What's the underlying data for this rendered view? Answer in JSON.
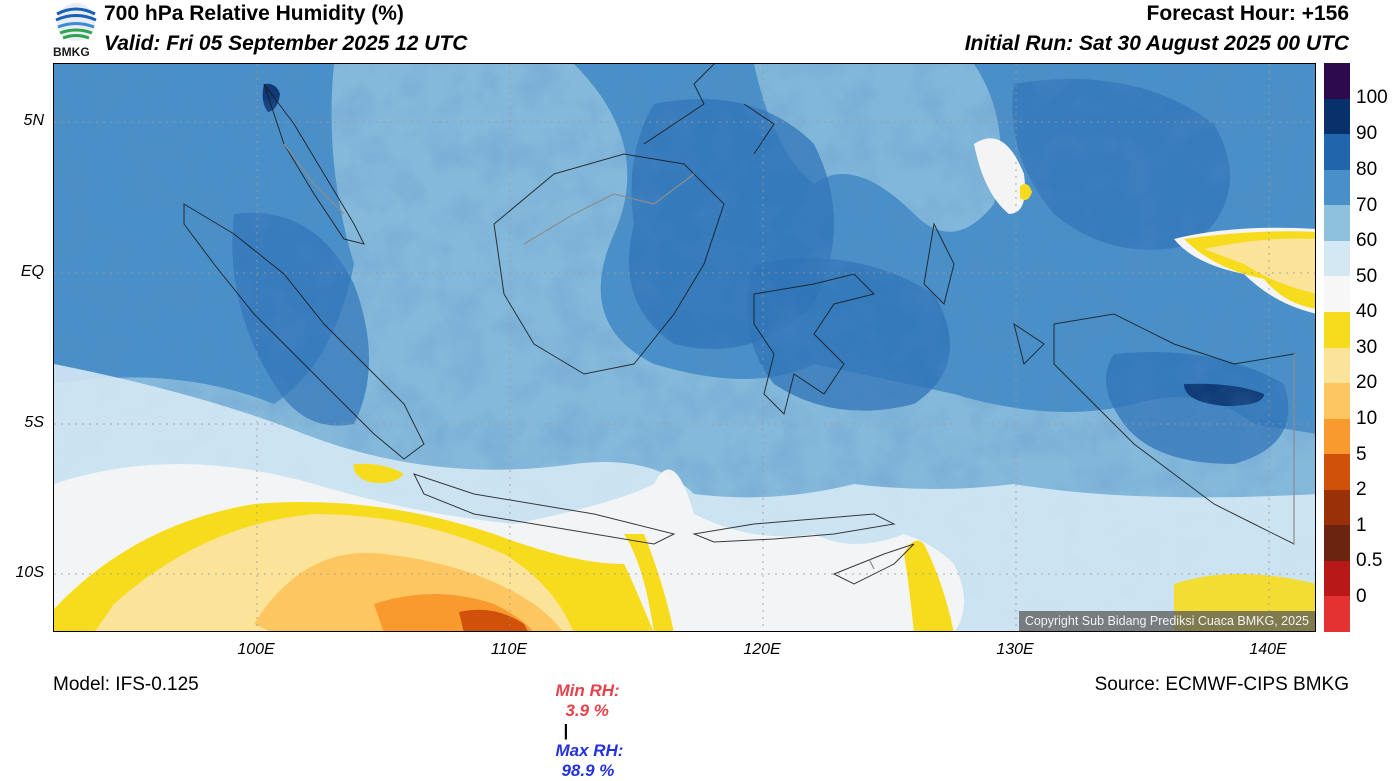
{
  "header": {
    "title": "700 hPa Relative Humidity (%)",
    "valid": "Valid: Fri 05 September 2025 12 UTC",
    "forecast_hour": "Forecast Hour: +156",
    "initial_run": "Initial Run: Sat 30 August 2025 00 UTC",
    "logo_text": "BMKG"
  },
  "map": {
    "lat_labels": [
      "5N",
      "EQ",
      "5S",
      "10S"
    ],
    "lon_labels": [
      "100E",
      "110E",
      "120E",
      "130E",
      "140E"
    ],
    "copyright": "Copyright Sub Bidang Prediksi Cuaca BMKG, 2025"
  },
  "colorbar": {
    "labels": [
      "100",
      "90",
      "80",
      "70",
      "60",
      "50",
      "40",
      "30",
      "20",
      "10",
      "5",
      "2",
      "1",
      "0.5",
      "0"
    ],
    "colors": [
      "#2d0a4e",
      "#08306b",
      "#2166ac",
      "#4a90c8",
      "#8ec1de",
      "#d4e8f4",
      "#f7f7f7",
      "#f7dc1e",
      "#fbe49a",
      "#fdc661",
      "#f99a2e",
      "#d0520a",
      "#9a3008",
      "#6b2410",
      "#b81818",
      "#e43232"
    ]
  },
  "stats": {
    "min_label": "Min RH:",
    "min_value": "3.9 %",
    "separator": "|",
    "max_label": "Max RH:",
    "max_value": "98.9 %",
    "min_color": "#e8414a",
    "max_color": "#2233dd"
  },
  "footer": {
    "model": "Model: IFS-0.125",
    "source": "Source: ECMWF-CIPS BMKG"
  }
}
